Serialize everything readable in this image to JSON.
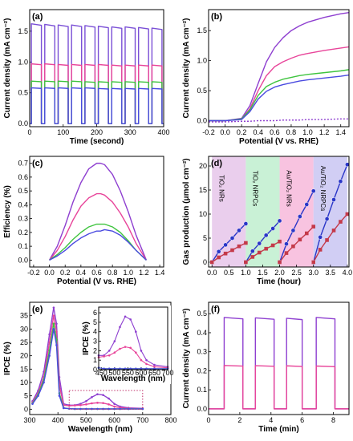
{
  "chart_data": [
    {
      "panel": "(a)",
      "type": "line",
      "xlabel": "Time (second)",
      "ylabel": "Current density (mA cm⁻²)",
      "xlim": [
        0,
        400
      ],
      "ylim": [
        -0.05,
        1.85
      ],
      "xticks": [
        "0",
        "100",
        "200",
        "300",
        "400"
      ],
      "yticks": [
        "0.0",
        "0.5",
        "1.0",
        "1.5"
      ],
      "x_on_off": [
        [
          5,
          35
        ],
        [
          45,
          75
        ],
        [
          85,
          115
        ],
        [
          125,
          155
        ],
        [
          165,
          195
        ],
        [
          205,
          235
        ],
        [
          245,
          275
        ],
        [
          285,
          315
        ],
        [
          325,
          355
        ],
        [
          365,
          395
        ]
      ],
      "series": [
        {
          "color": "#7a4fd6",
          "on_values": [
            1.62,
            1.61,
            1.6,
            1.6,
            1.59,
            1.58,
            1.57,
            1.57,
            1.56,
            1.55
          ],
          "off_value": 0.0
        },
        {
          "color": "#e8459a",
          "on_values": [
            0.97,
            0.97,
            0.96,
            0.96,
            0.96,
            0.96,
            0.95,
            0.95,
            0.95,
            0.95
          ],
          "off_value": 0.0
        },
        {
          "color": "#3ec43e",
          "on_values": [
            0.69,
            0.69,
            0.69,
            0.69,
            0.68,
            0.68,
            0.68,
            0.68,
            0.68,
            0.68
          ],
          "off_value": 0.0
        },
        {
          "color": "#4a4ae0",
          "on_values": [
            0.58,
            0.58,
            0.58,
            0.58,
            0.58,
            0.57,
            0.57,
            0.57,
            0.57,
            0.57
          ],
          "off_value": 0.0
        }
      ]
    },
    {
      "panel": "(b)",
      "type": "line",
      "xlabel": "Potential (V vs. RHE)",
      "ylabel": "Current density (mA cm⁻²)",
      "xlim": [
        -0.2,
        1.5
      ],
      "ylim": [
        -0.1,
        1.85
      ],
      "xticks": [
        "-0.2",
        "0.0",
        "0.2",
        "0.4",
        "0.6",
        "0.8",
        "1.0",
        "1.2",
        "1.4"
      ],
      "yticks": [
        "0.0",
        "0.5",
        "1.0",
        "1.5"
      ],
      "x": [
        -0.2,
        0.0,
        0.2,
        0.3,
        0.4,
        0.5,
        0.6,
        0.7,
        0.8,
        0.9,
        1.0,
        1.2,
        1.4,
        1.5
      ],
      "series": [
        {
          "color": "#8e3fd0",
          "values": [
            0.0,
            0.0,
            0.04,
            0.25,
            0.62,
            0.98,
            1.22,
            1.38,
            1.5,
            1.58,
            1.64,
            1.72,
            1.78,
            1.8
          ]
        },
        {
          "color": "#e8459a",
          "values": [
            0.0,
            0.0,
            0.03,
            0.2,
            0.5,
            0.75,
            0.9,
            0.98,
            1.04,
            1.09,
            1.12,
            1.17,
            1.21,
            1.23
          ]
        },
        {
          "color": "#3ec43e",
          "values": [
            0.0,
            0.0,
            0.03,
            0.18,
            0.42,
            0.57,
            0.64,
            0.69,
            0.72,
            0.75,
            0.77,
            0.8,
            0.83,
            0.85
          ]
        },
        {
          "color": "#4a4ae0",
          "values": [
            0.0,
            0.0,
            0.02,
            0.15,
            0.36,
            0.49,
            0.56,
            0.6,
            0.63,
            0.66,
            0.68,
            0.71,
            0.74,
            0.76
          ]
        },
        {
          "color": "#8e3fd0",
          "dashed": true,
          "values": [
            -0.02,
            -0.02,
            -0.01,
            -0.01,
            0.0,
            0.0,
            0.0,
            0.01,
            0.01,
            0.01,
            0.02,
            0.02,
            0.03,
            0.03
          ]
        }
      ]
    },
    {
      "panel": "(c)",
      "type": "line",
      "xlabel": "Potential (V vs. RHE)",
      "ylabel": "Efficiency (%)",
      "xlim": [
        -0.25,
        1.45
      ],
      "ylim": [
        -0.05,
        0.75
      ],
      "xticks": [
        "-0.2",
        "0.0",
        "0.2",
        "0.4",
        "0.6",
        "0.8",
        "1.0",
        "1.2",
        "1.4"
      ],
      "yticks": [
        "0.0",
        "0.1",
        "0.2",
        "0.3",
        "0.4",
        "0.5",
        "0.6",
        "0.7"
      ],
      "x": [
        0.0,
        0.1,
        0.2,
        0.3,
        0.4,
        0.5,
        0.6,
        0.65,
        0.7,
        0.8,
        0.9,
        1.0,
        1.1,
        1.23
      ],
      "series": [
        {
          "color": "#8e3fd0",
          "values": [
            0.0,
            0.1,
            0.25,
            0.42,
            0.56,
            0.66,
            0.7,
            0.7,
            0.69,
            0.62,
            0.5,
            0.35,
            0.18,
            0.0
          ]
        },
        {
          "color": "#e8459a",
          "values": [
            0.0,
            0.07,
            0.17,
            0.29,
            0.39,
            0.45,
            0.48,
            0.48,
            0.47,
            0.42,
            0.34,
            0.24,
            0.12,
            0.0
          ]
        },
        {
          "color": "#3ec43e",
          "values": [
            0.0,
            0.04,
            0.09,
            0.15,
            0.2,
            0.24,
            0.26,
            0.26,
            0.26,
            0.24,
            0.2,
            0.14,
            0.07,
            0.0
          ]
        },
        {
          "color": "#4a4ae0",
          "values": [
            0.0,
            0.03,
            0.07,
            0.12,
            0.16,
            0.19,
            0.21,
            0.21,
            0.22,
            0.21,
            0.18,
            0.13,
            0.07,
            0.0
          ]
        }
      ]
    },
    {
      "panel": "(d)",
      "type": "line",
      "xlabel": "Time (hour)",
      "ylabel": "Gas production (μmol cm⁻²)",
      "xlim": [
        -0.1,
        4.05
      ],
      "ylim": [
        -1,
        22
      ],
      "xticks": [
        "0.0",
        "0.5",
        "1.0",
        "1.5",
        "2.0",
        "2.5",
        "3.0",
        "3.5",
        "4.0"
      ],
      "yticks": [
        "0",
        "5",
        "10",
        "15",
        "20"
      ],
      "regions": [
        {
          "label": "TiO₂ NRs",
          "from": 0,
          "to": 1,
          "color": "#e6c6ea"
        },
        {
          "label": "TiO₂ NRPCs",
          "from": 1,
          "to": 2,
          "color": "#bfefcf"
        },
        {
          "label": "Au/TiO₂ NRs",
          "from": 2,
          "to": 3,
          "color": "#f7b9db"
        },
        {
          "label": "Au/TiO₂ NRPCs",
          "from": 3,
          "to": 4,
          "color": "#c9c6f2"
        }
      ],
      "groups": [
        {
          "x": [
            0,
            0.2,
            0.4,
            0.6,
            0.8,
            1.0
          ],
          "h2": [
            0,
            2.2,
            3.6,
            5.0,
            6.6,
            8.0
          ],
          "o2": [
            0,
            1.0,
            1.8,
            2.5,
            3.3,
            4.0
          ]
        },
        {
          "x": [
            1.0,
            1.2,
            1.4,
            1.6,
            1.8,
            2.0
          ],
          "h2": [
            0,
            2.3,
            3.9,
            5.6,
            7.0,
            8.6
          ],
          "o2": [
            0,
            1.1,
            2.0,
            2.8,
            3.5,
            4.3
          ]
        },
        {
          "x": [
            2.0,
            2.2,
            2.4,
            2.6,
            2.8,
            3.0
          ],
          "h2": [
            0,
            3.8,
            6.6,
            9.5,
            12.0,
            14.8
          ],
          "o2": [
            0,
            1.9,
            3.3,
            4.7,
            6.0,
            7.4
          ]
        },
        {
          "x": [
            3.0,
            3.2,
            3.4,
            3.6,
            3.8,
            4.0
          ],
          "h2": [
            0,
            5.2,
            9.0,
            13.0,
            16.8,
            20.3
          ],
          "o2": [
            0,
            2.6,
            4.6,
            6.6,
            8.4,
            10.0
          ]
        }
      ],
      "colors": {
        "h2": "#2a36c8",
        "o2": "#c43a4a"
      }
    },
    {
      "panel": "(e)",
      "type": "line",
      "xlabel": "Wavelength (nm)",
      "ylabel": "IPCE (%)",
      "xlim": [
        300,
        800
      ],
      "ylim": [
        -2,
        40
      ],
      "xticks": [
        "300",
        "400",
        "500",
        "600",
        "700",
        "800"
      ],
      "yticks": [
        "0",
        "5",
        "10",
        "15",
        "20",
        "25",
        "30",
        "35"
      ],
      "x": [
        310,
        330,
        350,
        370,
        385,
        395,
        405,
        420,
        440,
        460,
        480,
        500,
        520,
        540,
        560,
        580,
        600,
        620,
        650,
        700
      ],
      "series": [
        {
          "color": "#8e3fd0",
          "values": [
            3.0,
            7.0,
            14.0,
            28.0,
            38.0,
            32.0,
            12.0,
            2.0,
            1.5,
            1.5,
            2.0,
            3.0,
            4.5,
            5.6,
            5.3,
            4.0,
            2.0,
            1.0,
            0.5,
            0.3
          ]
        },
        {
          "color": "#e8459a",
          "values": [
            2.5,
            6.0,
            12.0,
            25.0,
            35.0,
            29.0,
            9.0,
            1.5,
            1.3,
            1.4,
            1.5,
            1.8,
            2.2,
            2.4,
            2.3,
            1.8,
            1.0,
            0.6,
            0.3,
            0.2
          ]
        },
        {
          "color": "#3ec43e",
          "values": [
            2.2,
            5.5,
            11.0,
            22.0,
            32.0,
            26.0,
            6.0,
            0.5,
            0.2,
            0.1,
            0.1,
            0.1,
            0.1,
            0.1,
            0.1,
            0.1,
            0.1,
            0.1,
            0.1,
            0.1
          ]
        },
        {
          "color": "#4a4ae0",
          "values": [
            2.0,
            5.0,
            10.0,
            20.0,
            30.0,
            24.0,
            5.0,
            0.4,
            0.2,
            0.1,
            0.1,
            0.1,
            0.1,
            0.1,
            0.1,
            0.1,
            0.1,
            0.1,
            0.1,
            0.1
          ]
        }
      ],
      "inset": {
        "xlabel": "Wavelength (nm)",
        "ylabel": "IPCE (%)",
        "xlim": [
          440,
          700
        ],
        "ylim": [
          0,
          6.6
        ],
        "xticks": [
          "450",
          "500",
          "550",
          "600",
          "650",
          "700"
        ],
        "yticks": [
          "0",
          "1",
          "2",
          "3",
          "4",
          "5",
          "6"
        ],
        "zoom_box_x": [
          440,
          700
        ],
        "zoom_box_y": [
          0,
          7
        ]
      }
    },
    {
      "panel": "(f)",
      "type": "line",
      "xlabel": "Time (min)",
      "ylabel": "Current density (mA cm⁻²)",
      "xlim": [
        0,
        9
      ],
      "ylim": [
        -0.03,
        0.56
      ],
      "xticks": [
        "0",
        "2",
        "4",
        "6",
        "8"
      ],
      "yticks": [
        "0.0",
        "0.1",
        "0.2",
        "0.3",
        "0.4",
        "0.5"
      ],
      "x_on_off": [
        [
          1.0,
          2.2
        ],
        [
          3.0,
          4.2
        ],
        [
          5.0,
          6.0
        ],
        [
          6.9,
          8.1
        ]
      ],
      "series": [
        {
          "color": "#8e3fd0",
          "on_values": [
            0.48,
            0.478,
            0.476,
            0.48
          ],
          "off_value": 0.0
        },
        {
          "color": "#e8459a",
          "on_values": [
            0.228,
            0.227,
            0.226,
            0.225
          ],
          "off_value": 0.0
        }
      ]
    }
  ]
}
